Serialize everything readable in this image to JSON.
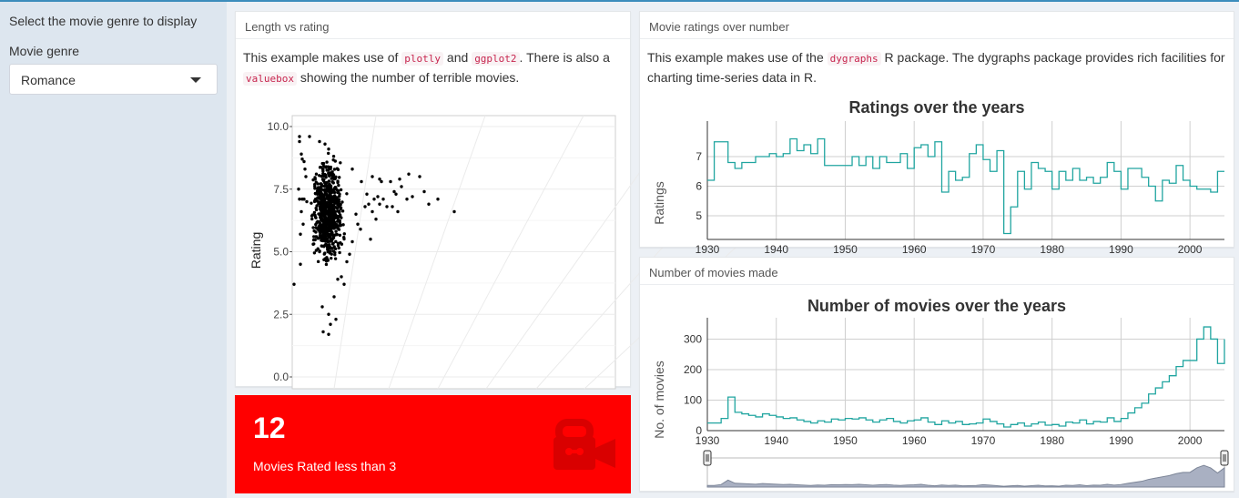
{
  "sidebar": {
    "title": "Select the movie genre to display",
    "genre_label": "Movie genre",
    "genre_selected": "Romance"
  },
  "scatter_box": {
    "title": "Length vs rating",
    "desc_parts": [
      "This example makes use of ",
      "plotly",
      " and ",
      "ggplot2",
      ". There is also a ",
      "valuebox",
      " showing the number of terrible movies."
    ]
  },
  "ratings_box": {
    "title": "Movie ratings over number",
    "desc_parts": [
      "This example makes use of the ",
      "dygraphs",
      " R package. The dygraphs package provides rich facilities for charting time-series data in R."
    ]
  },
  "counts_box": {
    "title": "Number of movies made"
  },
  "valuebox": {
    "value": "12",
    "label": "Movies Rated less than 3",
    "icon": "video-camera-icon"
  },
  "colors": {
    "series": "#20a5a0",
    "valuebox_bg": "#ff0000",
    "range_fill": "#a9b0c2"
  },
  "chart_data": [
    {
      "type": "scatter",
      "title": "",
      "xlabel": "",
      "ylabel": "Rating",
      "ylim": [
        0,
        10
      ],
      "y_ticks": [
        "0.0",
        "2.5",
        "5.0",
        "7.5",
        "10.0"
      ],
      "grid": true,
      "points": [
        [
          8,
          9.6
        ],
        [
          8,
          9.4
        ],
        [
          19,
          9.6
        ],
        [
          30,
          9.4
        ],
        [
          36,
          9.3
        ],
        [
          40,
          9.1
        ],
        [
          10,
          8.9
        ],
        [
          11,
          8.7
        ],
        [
          13,
          8.6
        ],
        [
          14,
          8.3
        ],
        [
          15,
          8.0
        ],
        [
          7,
          7.5
        ],
        [
          8,
          7.1
        ],
        [
          11,
          7.1
        ],
        [
          13,
          7.1
        ],
        [
          16,
          7.0
        ],
        [
          9,
          5.7
        ],
        [
          10,
          6.6
        ],
        [
          12,
          6.1
        ],
        [
          9,
          4.5
        ],
        [
          2,
          3.7
        ],
        [
          26,
          5.6
        ],
        [
          28,
          5.9
        ],
        [
          30,
          5.0
        ],
        [
          23,
          5.3
        ],
        [
          33,
          2.8
        ],
        [
          40,
          2.5
        ],
        [
          42,
          2.1
        ],
        [
          34,
          1.8
        ],
        [
          40,
          1.7
        ],
        [
          48,
          2.3
        ],
        [
          46,
          3.2
        ],
        [
          50,
          3.9
        ],
        [
          57,
          3.7
        ],
        [
          54,
          4.0
        ],
        [
          60,
          4.6
        ],
        [
          63,
          4.9
        ],
        [
          66,
          5.4
        ],
        [
          70,
          6.5
        ],
        [
          72,
          6.1
        ],
        [
          75,
          5.9
        ],
        [
          80,
          6.8
        ],
        [
          86,
          5.5
        ],
        [
          82,
          7.3
        ],
        [
          90,
          7.1
        ],
        [
          94,
          7.2
        ],
        [
          100,
          7.1
        ],
        [
          108,
          7.8
        ],
        [
          112,
          7.4
        ],
        [
          116,
          6.6
        ],
        [
          118,
          7.9
        ],
        [
          120,
          7.6
        ],
        [
          128,
          8.1
        ],
        [
          132,
          7.2
        ],
        [
          140,
          8.0
        ],
        [
          145,
          7.4
        ],
        [
          150,
          6.9
        ],
        [
          160,
          7.1
        ],
        [
          178,
          6.6
        ],
        [
          88,
          6.6
        ],
        [
          84,
          6.9
        ],
        [
          92,
          6.3
        ],
        [
          96,
          6.9
        ],
        [
          104,
          6.8
        ],
        [
          110,
          6.8
        ],
        [
          126,
          7.1
        ],
        [
          114,
          7.3
        ],
        [
          98,
          7.8
        ],
        [
          76,
          7.8
        ],
        [
          66,
          8.3
        ],
        [
          96,
          7.9
        ],
        [
          88,
          8.0
        ]
      ],
      "cluster": {
        "center_x": 40,
        "center_y": 6.6,
        "spread_x": 10,
        "spread_y": 1.1,
        "count": 650
      }
    },
    {
      "type": "line",
      "title": "Ratings over the years",
      "xlabel": "",
      "ylabel": "Ratings",
      "xlim": [
        1930,
        2005
      ],
      "ylim": [
        4.2,
        8.2
      ],
      "y_ticks": [
        5,
        6,
        7
      ],
      "x_ticks": [
        1930,
        1940,
        1950,
        1960,
        1970,
        1980,
        1990,
        2000
      ],
      "step": true,
      "x": [
        1930,
        1931,
        1932,
        1933,
        1934,
        1935,
        1936,
        1937,
        1938,
        1939,
        1940,
        1941,
        1942,
        1943,
        1944,
        1945,
        1946,
        1947,
        1948,
        1949,
        1950,
        1951,
        1952,
        1953,
        1954,
        1955,
        1956,
        1957,
        1958,
        1959,
        1960,
        1961,
        1962,
        1963,
        1964,
        1965,
        1966,
        1967,
        1968,
        1969,
        1970,
        1971,
        1972,
        1973,
        1974,
        1975,
        1976,
        1977,
        1978,
        1979,
        1980,
        1981,
        1982,
        1983,
        1984,
        1985,
        1986,
        1987,
        1988,
        1989,
        1990,
        1991,
        1992,
        1993,
        1994,
        1995,
        1996,
        1997,
        1998,
        1999,
        2000,
        2001,
        2002,
        2003,
        2004,
        2005
      ],
      "values": [
        6.2,
        7.5,
        7.5,
        6.8,
        6.6,
        6.8,
        6.8,
        7.0,
        7.0,
        7.1,
        7.0,
        7.1,
        7.6,
        7.2,
        7.4,
        7.1,
        7.6,
        6.7,
        6.7,
        6.7,
        6.7,
        7.0,
        6.7,
        7.0,
        6.6,
        7.0,
        6.8,
        6.8,
        7.1,
        6.6,
        7.3,
        7.4,
        7.0,
        7.5,
        5.8,
        6.5,
        6.2,
        6.3,
        7.1,
        7.4,
        6.9,
        6.5,
        7.2,
        4.4,
        5.3,
        6.5,
        5.9,
        6.8,
        6.6,
        6.5,
        5.9,
        6.5,
        6.2,
        6.6,
        6.2,
        6.3,
        6.1,
        6.3,
        6.8,
        6.5,
        5.9,
        6.6,
        6.6,
        6.3,
        6.0,
        5.5,
        6.2,
        6.1,
        6.7,
        6.2,
        6.0,
        5.9,
        5.9,
        5.8,
        6.5,
        6.5
      ]
    },
    {
      "type": "line",
      "title": "Number of movies over the years",
      "xlabel": "",
      "ylabel": "No. of movies",
      "xlim": [
        1930,
        2005
      ],
      "ylim": [
        0,
        370
      ],
      "y_ticks": [
        0,
        100,
        200,
        300
      ],
      "x_ticks": [
        1930,
        1940,
        1950,
        1960,
        1970,
        1980,
        1990,
        2000
      ],
      "step": true,
      "x": [
        1930,
        1931,
        1932,
        1933,
        1934,
        1935,
        1936,
        1937,
        1938,
        1939,
        1940,
        1941,
        1942,
        1943,
        1944,
        1945,
        1946,
        1947,
        1948,
        1949,
        1950,
        1951,
        1952,
        1953,
        1954,
        1955,
        1956,
        1957,
        1958,
        1959,
        1960,
        1961,
        1962,
        1963,
        1964,
        1965,
        1966,
        1967,
        1968,
        1969,
        1970,
        1971,
        1972,
        1973,
        1974,
        1975,
        1976,
        1977,
        1978,
        1979,
        1980,
        1981,
        1982,
        1983,
        1984,
        1985,
        1986,
        1987,
        1988,
        1989,
        1990,
        1991,
        1992,
        1993,
        1994,
        1995,
        1996,
        1997,
        1998,
        1999,
        2000,
        2001,
        2002,
        2003,
        2004,
        2005
      ],
      "values": [
        25,
        25,
        40,
        110,
        60,
        55,
        50,
        45,
        55,
        50,
        45,
        40,
        42,
        35,
        30,
        25,
        32,
        28,
        38,
        35,
        40,
        38,
        42,
        35,
        28,
        35,
        40,
        30,
        25,
        32,
        35,
        42,
        28,
        20,
        32,
        25,
        30,
        20,
        22,
        25,
        38,
        30,
        22,
        12,
        20,
        25,
        15,
        22,
        28,
        18,
        20,
        15,
        28,
        25,
        35,
        22,
        30,
        28,
        42,
        30,
        40,
        58,
        75,
        90,
        120,
        140,
        160,
        180,
        210,
        230,
        230,
        300,
        340,
        300,
        220,
        300
      ]
    }
  ]
}
